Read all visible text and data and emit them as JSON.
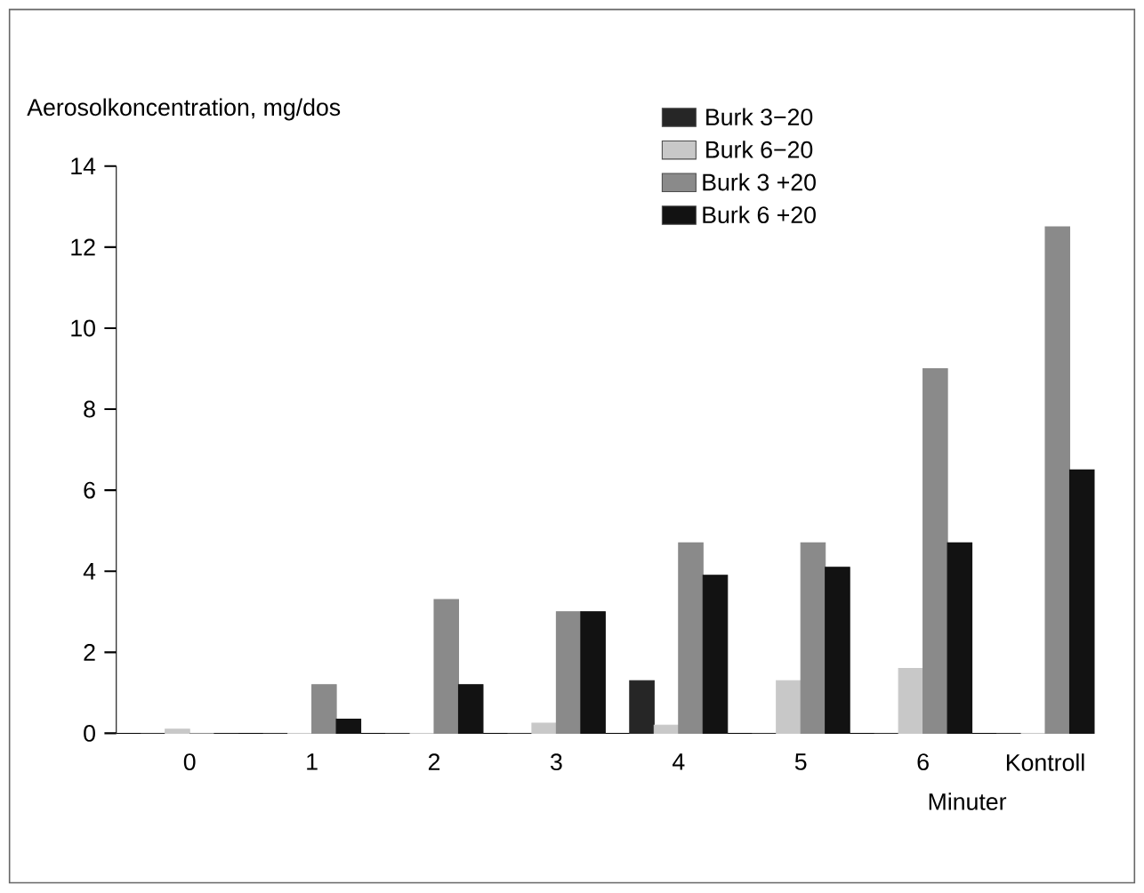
{
  "chart_data": {
    "type": "bar",
    "ylabel": "Aerosolkoncentration, mg/dos",
    "xlabel": "Minuter",
    "categories": [
      "0",
      "1",
      "2",
      "3",
      "4",
      "5",
      "6",
      "Kontroll"
    ],
    "series": [
      {
        "name": "Burk 3−20",
        "color": "#262626",
        "values": [
          0,
          0,
          0,
          0,
          1.3,
          0,
          0,
          0
        ]
      },
      {
        "name": "Burk 6−20",
        "color": "#c8c8c8",
        "values": [
          0.1,
          0,
          0,
          0.25,
          0.2,
          1.3,
          1.6,
          0
        ]
      },
      {
        "name": "Burk 3 +20",
        "color": "#8a8a8a",
        "values": [
          0,
          1.2,
          3.3,
          3.0,
          4.7,
          4.7,
          9.0,
          12.5
        ]
      },
      {
        "name": "Burk 6 +20",
        "color": "#121212",
        "values": [
          0,
          0.35,
          1.2,
          3.0,
          3.9,
          4.1,
          4.7,
          6.5
        ]
      }
    ],
    "ylim": [
      0,
      14
    ],
    "yticks": [
      0,
      2,
      4,
      6,
      8,
      10,
      12,
      14
    ],
    "legend": "top right"
  }
}
